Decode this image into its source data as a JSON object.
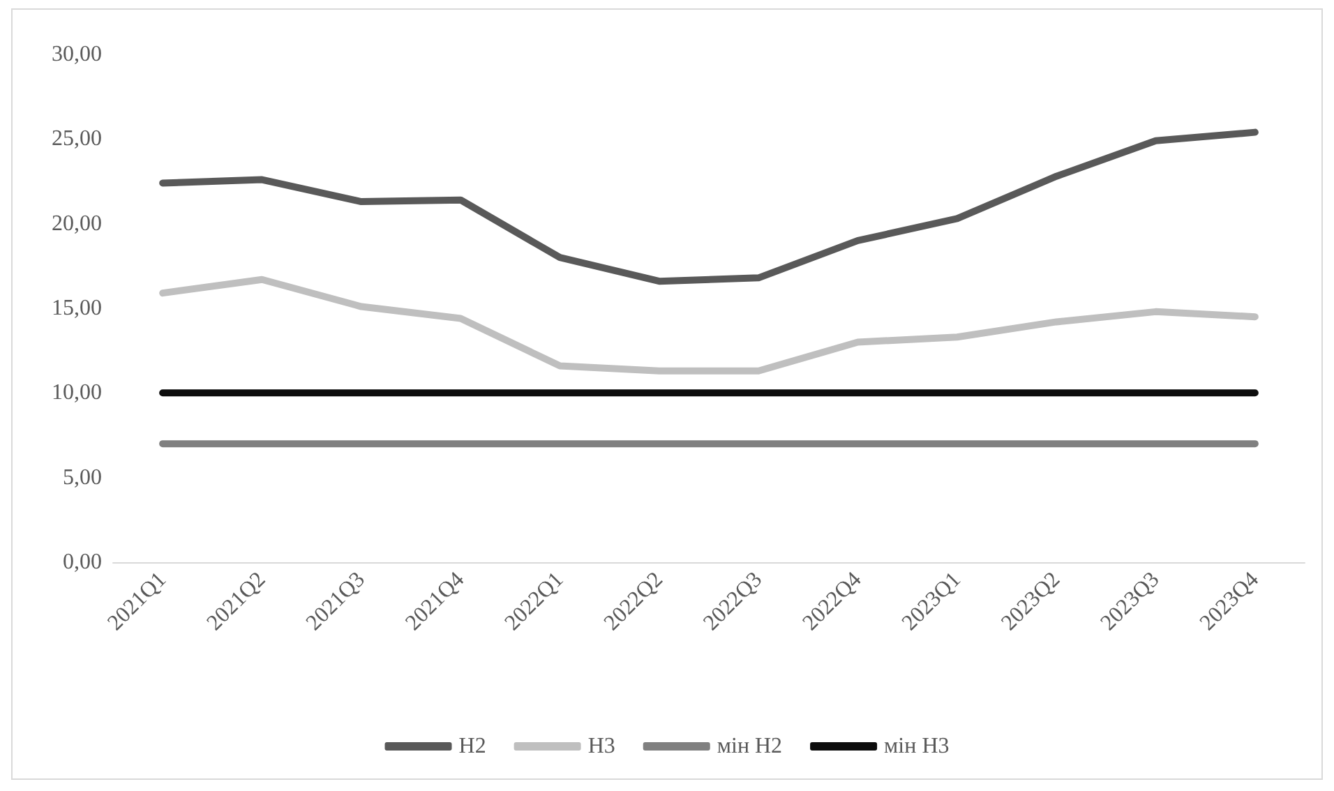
{
  "chart_data": {
    "type": "line",
    "categories": [
      "2021Q1",
      "2021Q2",
      "2021Q3",
      "2021Q4",
      "2022Q1",
      "2022Q2",
      "2022Q3",
      "2022Q4",
      "2023Q1",
      "2023Q2",
      "2023Q3",
      "2023Q4"
    ],
    "series": [
      {
        "name": "H2",
        "color": "#595959",
        "values": [
          22.4,
          22.6,
          21.3,
          21.4,
          18.0,
          16.6,
          16.8,
          19.0,
          20.3,
          22.8,
          24.9,
          25.4
        ]
      },
      {
        "name": "H3",
        "color": "#bfbfbf",
        "values": [
          15.9,
          16.7,
          15.1,
          14.4,
          11.6,
          11.3,
          11.3,
          13.0,
          13.3,
          14.2,
          14.8,
          14.5
        ]
      },
      {
        "name": "мін H2",
        "color": "#808080",
        "values": [
          7,
          7,
          7,
          7,
          7,
          7,
          7,
          7,
          7,
          7,
          7,
          7
        ]
      },
      {
        "name": "мін H3",
        "color": "#0d0d0d",
        "values": [
          10,
          10,
          10,
          10,
          10,
          10,
          10,
          10,
          10,
          10,
          10,
          10
        ]
      }
    ],
    "ylim": [
      0,
      30
    ],
    "yticks": [
      {
        "value": 0,
        "label": "0,00"
      },
      {
        "value": 5,
        "label": "5,00"
      },
      {
        "value": 10,
        "label": "10,00"
      },
      {
        "value": 15,
        "label": "15,00"
      },
      {
        "value": 20,
        "label": "20,00"
      },
      {
        "value": 25,
        "label": "25,00"
      },
      {
        "value": 30,
        "label": "30,00"
      }
    ],
    "grid": false,
    "legend": "bottom",
    "marker": "none",
    "line_style": "solid"
  }
}
